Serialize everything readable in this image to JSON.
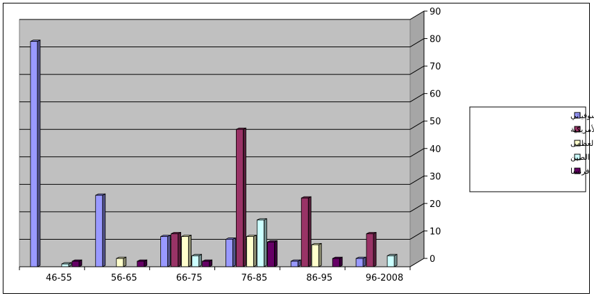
{
  "chart_data": {
    "type": "bar",
    "categories": [
      "46-55",
      "56-65",
      "66-75",
      "76-85",
      "86-95",
      "96-2008"
    ],
    "series": [
      {
        "name": "الاتحاد السوفياتي",
        "values": [
          82,
          26,
          11,
          10,
          2,
          3
        ],
        "color": "#9999FF"
      },
      {
        "name": "الولايات المتحدة الأمريكية",
        "values": [
          0,
          0,
          12,
          50,
          25,
          12
        ],
        "color": "#993366"
      },
      {
        "name": "بريطانيا العظمى",
        "values": [
          0,
          3,
          11,
          11,
          8,
          0
        ],
        "color": "#FFFFCC"
      },
      {
        "name": "الصين",
        "values": [
          1,
          0,
          4,
          17,
          0,
          4
        ],
        "color": "#CCFFFF"
      },
      {
        "name": "فرنسا",
        "values": [
          2,
          2,
          2,
          9,
          3,
          0
        ],
        "color": "#660066"
      }
    ],
    "ylim": [
      0,
      90
    ],
    "yticks": [
      "0",
      "10",
      "20",
      "30",
      "40",
      "50",
      "60",
      "70",
      "80",
      "90"
    ],
    "y_axis_side": "right",
    "grid": true,
    "legend": "right",
    "plot_background": "#C0C0C0",
    "colors": {
      "gridline": "#000000",
      "wall": "#C0C0C0",
      "floor": "#808080"
    }
  }
}
